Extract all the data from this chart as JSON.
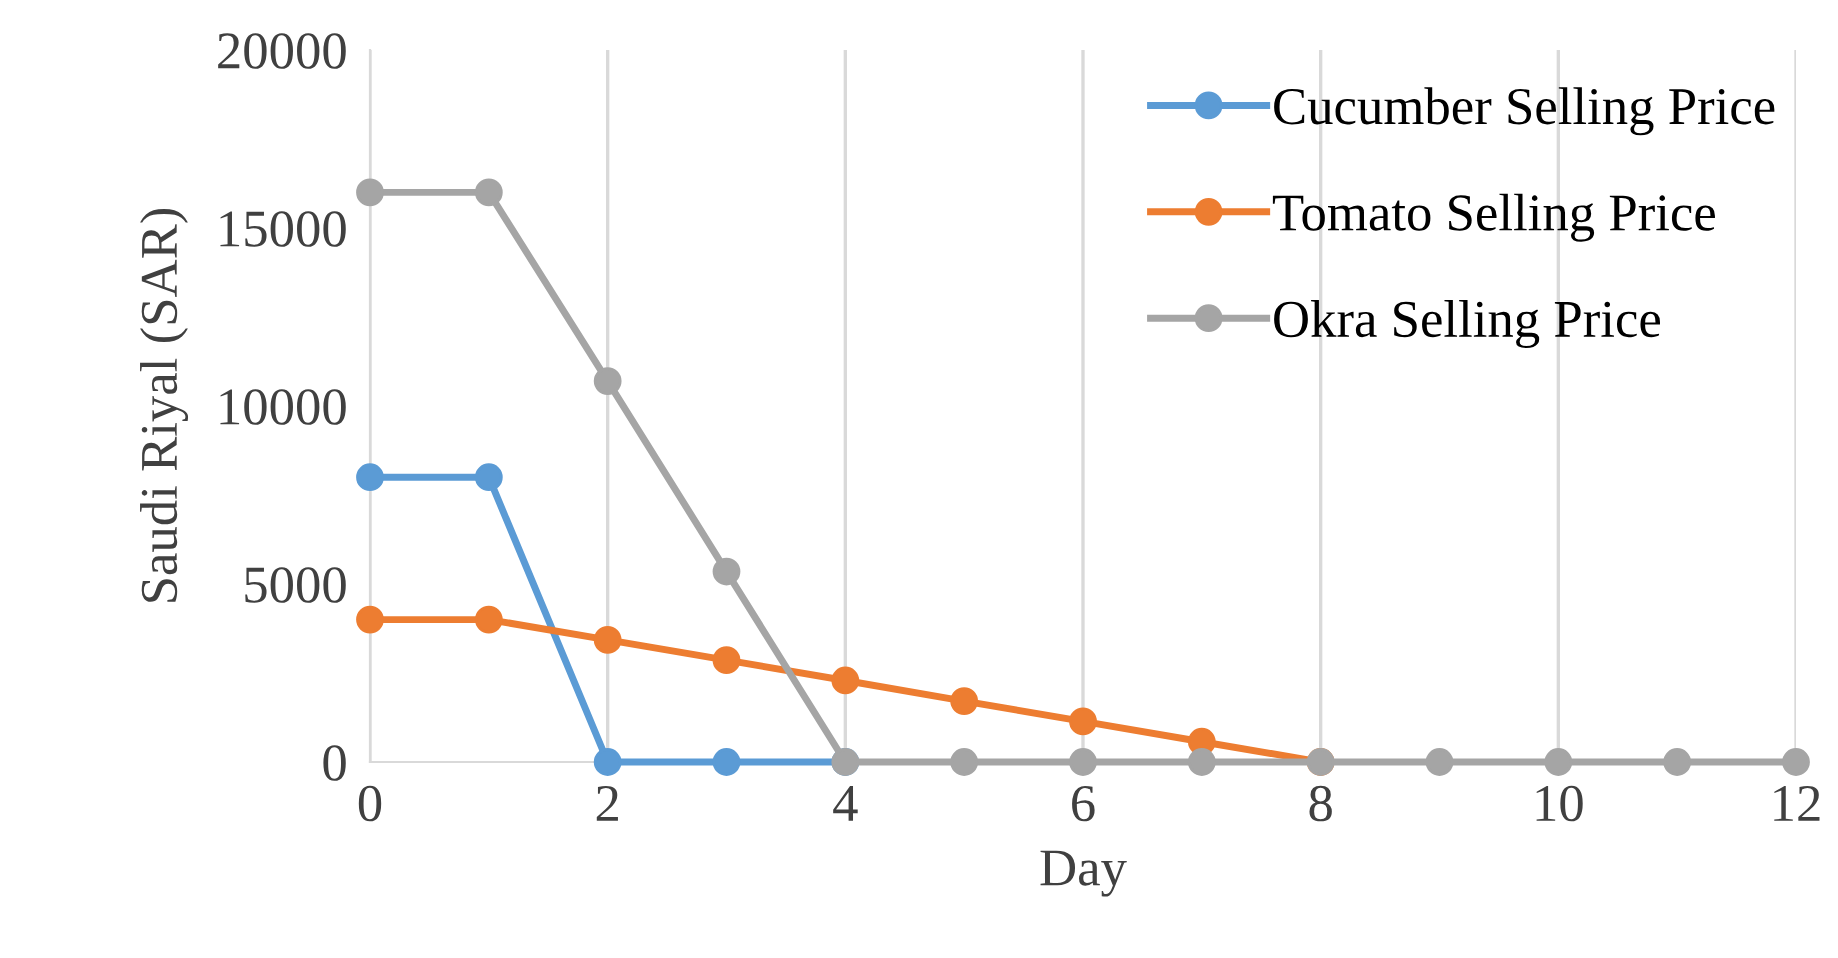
{
  "chart_data": {
    "type": "line",
    "xlabel": "Day",
    "ylabel": "Saudi Riyal (SAR)",
    "x": [
      0,
      1,
      2,
      3,
      4,
      5,
      6,
      7,
      8,
      9,
      10,
      11,
      12
    ],
    "series": [
      {
        "name": "Cucumber Selling Price",
        "color": "#5b9bd5",
        "values": [
          8000,
          8000,
          0,
          0,
          0,
          null,
          null,
          null,
          null,
          null,
          null,
          null,
          null
        ]
      },
      {
        "name": "Tomato Selling Price",
        "color": "#ed7d31",
        "values": [
          4000,
          4000,
          3430,
          2860,
          2290,
          1710,
          1140,
          570,
          0,
          null,
          null,
          null,
          null
        ]
      },
      {
        "name": "Okra Selling Price",
        "color": "#a5a5a5",
        "values": [
          16000,
          16000,
          10700,
          5350,
          0,
          0,
          0,
          0,
          0,
          0,
          0,
          0,
          0
        ]
      }
    ],
    "xlim": [
      0,
      12
    ],
    "xticks": [
      0,
      2,
      4,
      6,
      8,
      10,
      12
    ],
    "ylim": [
      0,
      20000
    ],
    "yticks": [
      0,
      5000,
      10000,
      15000,
      20000
    ],
    "grid": "x",
    "legend": "top right",
    "marker": "circle",
    "line_style": "solid"
  }
}
